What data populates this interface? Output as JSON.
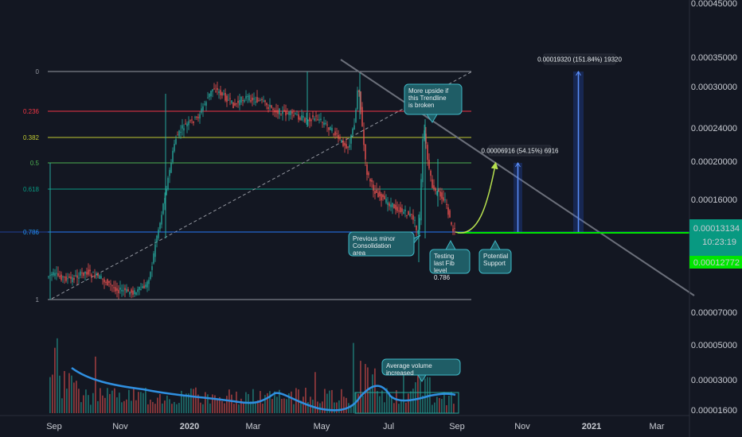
{
  "colors": {
    "background": "#131722",
    "candle_up": "#26a69a",
    "candle_down": "#ef5350",
    "trendline": "#6b6f7a",
    "support_line": "#00e600",
    "volume_ma": "#2f8fe0",
    "callout_fill": "#1f5d66",
    "callout_border": "#3fb8c6",
    "projection_arc": "#b7e14f"
  },
  "chart_data": [
    {
      "type": "candlestick",
      "y_scale": "log",
      "price_axis_labels": [
        "0.00045000",
        "0.00035000",
        "0.00030000",
        "0.00024000",
        "0.00020000",
        "0.00016000",
        "0.00007000",
        "0.00005000",
        "0.00003000",
        "0.00001600"
      ],
      "time_axis_labels": [
        "Sep",
        "Nov",
        "2020",
        "Mar",
        "May",
        "Jul",
        "Sep",
        "Nov",
        "2021",
        "Mar"
      ],
      "current_price_tag": {
        "price": "0.00013134",
        "countdown": "10:23:19"
      },
      "support_price_tag": "0.00012772",
      "fib_levels": [
        {
          "label": "0",
          "color": "#9598a1"
        },
        {
          "label": "0.236",
          "color": "#f23645"
        },
        {
          "label": "0.382",
          "color": "#c0ca33"
        },
        {
          "label": "0.5",
          "color": "#4caf50"
        },
        {
          "label": "0.618",
          "color": "#089981"
        },
        {
          "label": "0.786",
          "color": "#2196f3"
        },
        {
          "label": "1",
          "color": "#9598a1"
        }
      ],
      "measure_tools": [
        {
          "label": "0.00006916 (54.15%) 6916"
        },
        {
          "label": "0.00019320 (151.84%) 19320"
        }
      ],
      "annotations": [
        {
          "id": "trendline",
          "text": "More upside if this Trendline is broken"
        },
        {
          "id": "consolidation",
          "text": "Previous minor Consolidation area"
        },
        {
          "id": "fib",
          "text": "Testing last Fib level 0.786"
        },
        {
          "id": "support",
          "text": "Potential Support"
        },
        {
          "id": "volume",
          "text": "Average volume increased"
        }
      ]
    }
  ]
}
